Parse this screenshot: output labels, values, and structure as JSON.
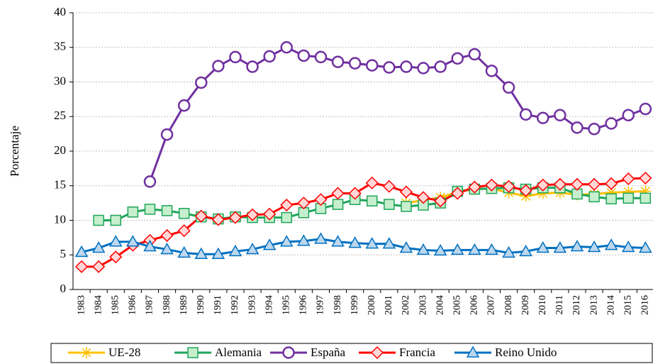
{
  "chart_data": {
    "type": "line",
    "y_label": "Porcentaje",
    "categories": [
      "1983",
      "1984",
      "1985",
      "1986",
      "1987",
      "1988",
      "1989",
      "1990",
      "1991",
      "1992",
      "1993",
      "1994",
      "1995",
      "1996",
      "1997",
      "1998",
      "1999",
      "2000",
      "2001",
      "2002",
      "2003",
      "2004",
      "2005",
      "2006",
      "2007",
      "2008",
      "2009",
      "2010",
      "2011",
      "2012",
      "2013",
      "2014",
      "2015",
      "2016"
    ],
    "ylim": [
      0,
      40
    ],
    "yticks": [
      0,
      5,
      10,
      15,
      20,
      25,
      30,
      35,
      40
    ],
    "grid": true,
    "legend": "bottom",
    "series": [
      {
        "name": "UE-28",
        "color": "#ffc000",
        "marker": "star",
        "values": [
          null,
          null,
          null,
          null,
          null,
          null,
          null,
          null,
          null,
          null,
          null,
          null,
          null,
          null,
          null,
          null,
          null,
          null,
          null,
          12.5,
          12.9,
          13.3,
          14.1,
          14.5,
          14.6,
          14.0,
          13.5,
          13.9,
          14.0,
          13.7,
          13.8,
          14.0,
          14.1,
          14.2
        ]
      },
      {
        "name": "Alemania",
        "color": "#1fa55a",
        "marker": "square",
        "values": [
          null,
          10.0,
          10.0,
          11.2,
          11.6,
          11.4,
          11.0,
          10.5,
          10.2,
          10.5,
          10.4,
          10.4,
          10.4,
          11.1,
          11.7,
          12.3,
          13.0,
          12.8,
          12.3,
          12.0,
          12.2,
          12.5,
          14.2,
          14.5,
          14.6,
          14.7,
          14.5,
          14.7,
          14.7,
          13.8,
          13.4,
          13.1,
          13.2,
          13.2
        ]
      },
      {
        "name": "España",
        "color": "#7030a0",
        "marker": "circle",
        "values": [
          null,
          null,
          null,
          null,
          15.6,
          22.4,
          26.6,
          29.9,
          32.3,
          33.6,
          32.2,
          33.7,
          35.0,
          33.8,
          33.6,
          32.9,
          32.7,
          32.4,
          32.1,
          32.2,
          32.0,
          32.2,
          33.4,
          34.0,
          31.6,
          29.2,
          25.3,
          24.8,
          25.2,
          23.4,
          23.2,
          24.0,
          25.2,
          26.1
        ]
      },
      {
        "name": "Francia",
        "color": "#ff0000",
        "marker": "diamond",
        "values": [
          3.3,
          3.3,
          4.7,
          6.4,
          7.1,
          7.8,
          8.5,
          10.6,
          10.1,
          10.4,
          10.8,
          10.9,
          12.2,
          12.5,
          13.0,
          13.9,
          13.9,
          15.4,
          14.9,
          14.1,
          13.3,
          12.8,
          13.9,
          14.8,
          15.1,
          14.9,
          14.3,
          15.1,
          15.2,
          15.2,
          15.2,
          15.3,
          16.0,
          16.1
        ]
      },
      {
        "name": "Reino Unido",
        "color": "#0070c0",
        "marker": "triangle",
        "values": [
          5.4,
          6.0,
          6.9,
          6.9,
          6.2,
          5.8,
          5.3,
          5.1,
          5.1,
          5.5,
          5.8,
          6.4,
          6.9,
          7.0,
          7.3,
          6.9,
          6.7,
          6.6,
          6.6,
          6.0,
          5.7,
          5.6,
          5.7,
          5.7,
          5.7,
          5.3,
          5.5,
          6.0,
          6.0,
          6.2,
          6.1,
          6.4,
          6.1,
          6.0
        ]
      }
    ]
  }
}
